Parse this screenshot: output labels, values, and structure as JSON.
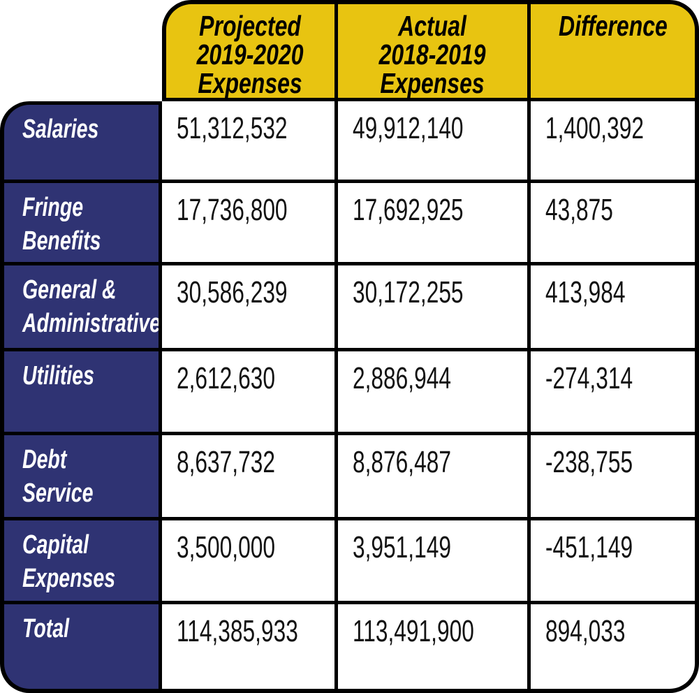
{
  "chart_data": {
    "type": "table",
    "columns": [
      "",
      "Projected 2019-2020 Expenses",
      "Actual 2018-2019 Expenses",
      "Difference"
    ],
    "rows": [
      [
        "Salaries",
        51312532,
        49912140,
        1400392
      ],
      [
        "Fringe Benefits",
        17736800,
        17692925,
        43875
      ],
      [
        "General & Administrative",
        30586239,
        30172255,
        413984
      ],
      [
        "Utilities",
        2612630,
        2886944,
        -274314
      ],
      [
        "Debt Service",
        8637732,
        8876487,
        -238755
      ],
      [
        "Capital Expenses",
        3500000,
        3951149,
        -451149
      ],
      [
        "Total",
        114385933,
        113491900,
        894033
      ]
    ]
  },
  "header": {
    "projected": "Projected\n2019-2020\nExpenses",
    "actual": "Actual\n2018-2019\nExpenses",
    "difference": "Difference"
  },
  "rows": [
    {
      "label": "Salaries",
      "projected": "51,312,532",
      "actual": "49,912,140",
      "difference": "1,400,392"
    },
    {
      "label": "Fringe\nBenefits",
      "projected": "17,736,800",
      "actual": "17,692,925",
      "difference": "43,875"
    },
    {
      "label": "General &\nAdministrative",
      "projected": "30,586,239",
      "actual": "30,172,255",
      "difference": "413,984"
    },
    {
      "label": "Utilities",
      "projected": "2,612,630",
      "actual": "2,886,944",
      "difference": "-274,314"
    },
    {
      "label": "Debt\nService",
      "projected": "8,637,732",
      "actual": "8,876,487",
      "difference": "-238,755"
    },
    {
      "label": "Capital\nExpenses",
      "projected": "3,500,000",
      "actual": "3,951,149",
      "difference": "-451,149"
    },
    {
      "label": "Total",
      "projected": "114,385,933",
      "actual": "113,491,900",
      "difference": "894,033"
    }
  ],
  "colors": {
    "header_bg": "#E8C411",
    "label_bg": "#2F3373",
    "border": "#000000",
    "cell_bg": "#FFFFFF",
    "header_text": "#000000",
    "label_text": "#FFFFFF",
    "value_text": "#121212"
  }
}
